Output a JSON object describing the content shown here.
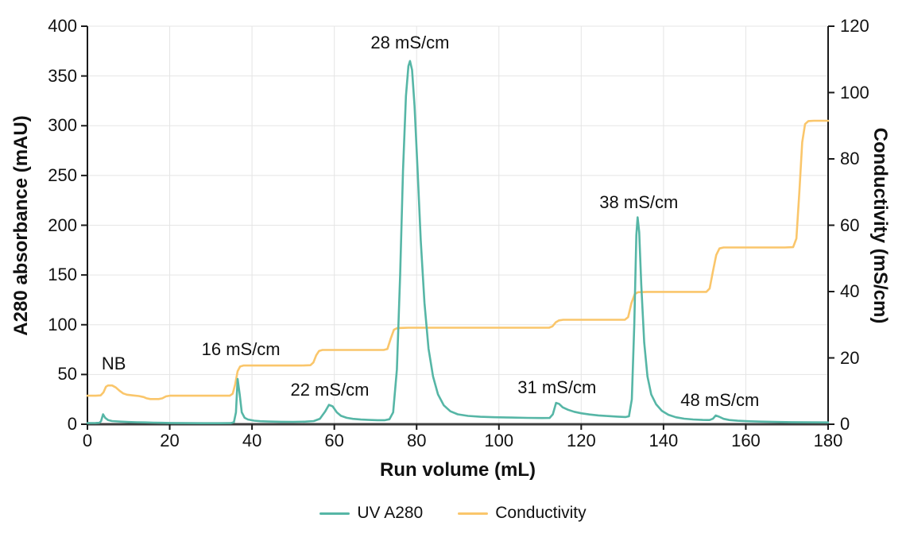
{
  "chart_data": {
    "type": "line",
    "description": "Ion-exchange chromatography run: UV A280 trace with stepped conductivity gradient",
    "grid": true,
    "legend_position": "bottom",
    "x_axis": {
      "label": "Run volume (mL)",
      "min": 0,
      "max": 180,
      "ticks": [
        0,
        20,
        40,
        60,
        80,
        100,
        120,
        140,
        160,
        180
      ]
    },
    "y_left": {
      "label": "A280 absorbance (mAU)",
      "min": 0,
      "max": 400,
      "ticks": [
        0,
        50,
        100,
        150,
        200,
        250,
        300,
        350,
        400
      ]
    },
    "y_right": {
      "label": "Conductivity (mS/cm)",
      "min": 0,
      "max": 120,
      "ticks": [
        0,
        20,
        40,
        60,
        80,
        100,
        120
      ]
    },
    "colors": {
      "uv": "#56B6A6",
      "conductivity": "#FAC66B",
      "grid": "#E5E5E5",
      "axis": "#1A1A1A",
      "x_axis_line": "#3D3D3D",
      "text": "#111111"
    },
    "annotations": [
      {
        "text": "NB",
        "x": 6.4,
        "y": 60.7
      },
      {
        "text": "16 mS/cm",
        "x": 37.3,
        "y": 75.0
      },
      {
        "text": "22 mS/cm",
        "x": 58.9,
        "y": 34.3
      },
      {
        "text": "28 mS/cm",
        "x": 78.4,
        "y": 383.0
      },
      {
        "text": "31 mS/cm",
        "x": 114.1,
        "y": 36.7
      },
      {
        "text": "38 mS/cm",
        "x": 134.0,
        "y": 222.8
      },
      {
        "text": "48 mS/cm",
        "x": 153.7,
        "y": 24.0
      }
    ],
    "series": [
      {
        "name": "UV A280",
        "axis": "left",
        "color": "#56B6A6",
        "points": [
          [
            0,
            1.2
          ],
          [
            2,
            1.25
          ],
          [
            2.9,
            1.4
          ],
          [
            3.3,
            3
          ],
          [
            3.8,
            10
          ],
          [
            4.3,
            6.5
          ],
          [
            5,
            4.2
          ],
          [
            6,
            3.2
          ],
          [
            8,
            2.6
          ],
          [
            10,
            2.2
          ],
          [
            12,
            2
          ],
          [
            14,
            1.8
          ],
          [
            16,
            1.6
          ],
          [
            18,
            1.45
          ],
          [
            20,
            1.3
          ],
          [
            24,
            1.1
          ],
          [
            28,
            1
          ],
          [
            32,
            1
          ],
          [
            34.8,
            1.1
          ],
          [
            35.6,
            2
          ],
          [
            36.1,
            12
          ],
          [
            36.5,
            45.5
          ],
          [
            37,
            30
          ],
          [
            37.5,
            12
          ],
          [
            38.2,
            6.5
          ],
          [
            39,
            4.8
          ],
          [
            40.5,
            3.6
          ],
          [
            42,
            3
          ],
          [
            44,
            2.7
          ],
          [
            47,
            2.5
          ],
          [
            50,
            2.4
          ],
          [
            53,
            2.6
          ],
          [
            55,
            3.2
          ],
          [
            56.5,
            5.5
          ],
          [
            57.8,
            13
          ],
          [
            58.7,
            19.5
          ],
          [
            59.6,
            18
          ],
          [
            60.6,
            12
          ],
          [
            61.6,
            8.5
          ],
          [
            63,
            6.5
          ],
          [
            64.5,
            5.4
          ],
          [
            66.5,
            4.7
          ],
          [
            68.5,
            4.3
          ],
          [
            70.5,
            4.1
          ],
          [
            72.3,
            4.1
          ],
          [
            73.4,
            5
          ],
          [
            74.3,
            12
          ],
          [
            75.2,
            55
          ],
          [
            76,
            150
          ],
          [
            76.7,
            255
          ],
          [
            77.4,
            330
          ],
          [
            78,
            360
          ],
          [
            78.4,
            365
          ],
          [
            78.9,
            356
          ],
          [
            79.5,
            320
          ],
          [
            80.2,
            258
          ],
          [
            81,
            185
          ],
          [
            81.9,
            122
          ],
          [
            82.9,
            76
          ],
          [
            84,
            48
          ],
          [
            85.2,
            30
          ],
          [
            86.6,
            19
          ],
          [
            88.2,
            13
          ],
          [
            90,
            10
          ],
          [
            92.5,
            8.4
          ],
          [
            95.5,
            7.5
          ],
          [
            99,
            7
          ],
          [
            103,
            6.7
          ],
          [
            107,
            6.4
          ],
          [
            110.5,
            6.2
          ],
          [
            112.3,
            6.3
          ],
          [
            113.1,
            10
          ],
          [
            113.9,
            21.5
          ],
          [
            114.6,
            20.5
          ],
          [
            115.5,
            17
          ],
          [
            116.8,
            14.5
          ],
          [
            118.3,
            12.5
          ],
          [
            120,
            11
          ],
          [
            122,
            9.8
          ],
          [
            124.2,
            8.9
          ],
          [
            126.5,
            8.2
          ],
          [
            128.8,
            7.7
          ],
          [
            130.8,
            7.3
          ],
          [
            131.6,
            8
          ],
          [
            132.3,
            25
          ],
          [
            132.9,
            100
          ],
          [
            133.4,
            190
          ],
          [
            133.7,
            208
          ],
          [
            134.1,
            193
          ],
          [
            134.6,
            140
          ],
          [
            135.3,
            82
          ],
          [
            136.1,
            48
          ],
          [
            137,
            30
          ],
          [
            138.2,
            20
          ],
          [
            139.6,
            13.5
          ],
          [
            141.2,
            9.5
          ],
          [
            143,
            7
          ],
          [
            145,
            5.6
          ],
          [
            147.2,
            4.8
          ],
          [
            149.5,
            4.3
          ],
          [
            151.2,
            4.2
          ],
          [
            152,
            5.5
          ],
          [
            152.7,
            8.8
          ],
          [
            153.5,
            7.6
          ],
          [
            154.6,
            5.4
          ],
          [
            156,
            4.2
          ],
          [
            158,
            3.5
          ],
          [
            160.5,
            3
          ],
          [
            163.5,
            2.6
          ],
          [
            167,
            2.3
          ],
          [
            171,
            2.05
          ],
          [
            175,
            1.9
          ],
          [
            180,
            1.8
          ]
        ]
      },
      {
        "name": "Conductivity",
        "axis": "right",
        "color": "#FAC66B",
        "points": [
          [
            0,
            8.6
          ],
          [
            2,
            8.6
          ],
          [
            3.2,
            8.7
          ],
          [
            3.9,
            9.6
          ],
          [
            4.5,
            11.3
          ],
          [
            5,
            11.7
          ],
          [
            6,
            11.7
          ],
          [
            6.9,
            11.1
          ],
          [
            7.8,
            10.1
          ],
          [
            8.7,
            9.3
          ],
          [
            9.6,
            8.9
          ],
          [
            11,
            8.7
          ],
          [
            12.5,
            8.5
          ],
          [
            13.7,
            8.2
          ],
          [
            14.4,
            7.8
          ],
          [
            15.3,
            7.6
          ],
          [
            17.3,
            7.6
          ],
          [
            18.2,
            7.8
          ],
          [
            19.1,
            8.4
          ],
          [
            20,
            8.6
          ],
          [
            24,
            8.6
          ],
          [
            29,
            8.6
          ],
          [
            34.6,
            8.6
          ],
          [
            35.3,
            9.2
          ],
          [
            35.9,
            12
          ],
          [
            36.5,
            16
          ],
          [
            37.1,
            17.4
          ],
          [
            37.9,
            17.7
          ],
          [
            40,
            17.7
          ],
          [
            46,
            17.7
          ],
          [
            52,
            17.7
          ],
          [
            54.2,
            17.8
          ],
          [
            54.9,
            18.6
          ],
          [
            55.6,
            20.8
          ],
          [
            56.3,
            22.1
          ],
          [
            57.1,
            22.4
          ],
          [
            60,
            22.4
          ],
          [
            66,
            22.4
          ],
          [
            72,
            22.4
          ],
          [
            72.9,
            22.7
          ],
          [
            73.7,
            25.8
          ],
          [
            74.5,
            28.5
          ],
          [
            75.3,
            29
          ],
          [
            78,
            29.1
          ],
          [
            84,
            29.1
          ],
          [
            92,
            29.1
          ],
          [
            100,
            29.1
          ],
          [
            108,
            29.1
          ],
          [
            112.2,
            29.1
          ],
          [
            113,
            29.5
          ],
          [
            113.8,
            30.7
          ],
          [
            114.6,
            31.3
          ],
          [
            115.6,
            31.5
          ],
          [
            120,
            31.5
          ],
          [
            126,
            31.5
          ],
          [
            130.6,
            31.5
          ],
          [
            131.4,
            32.3
          ],
          [
            132.2,
            36.5
          ],
          [
            133,
            39.2
          ],
          [
            133.8,
            39.8
          ],
          [
            136,
            39.9
          ],
          [
            141,
            39.9
          ],
          [
            146,
            39.9
          ],
          [
            150.4,
            39.9
          ],
          [
            151.2,
            40.9
          ],
          [
            152,
            46
          ],
          [
            152.8,
            51
          ],
          [
            153.6,
            53
          ],
          [
            154.6,
            53.3
          ],
          [
            158,
            53.3
          ],
          [
            163,
            53.3
          ],
          [
            169.5,
            53.3
          ],
          [
            171.5,
            53.4
          ],
          [
            172.3,
            56
          ],
          [
            173,
            70
          ],
          [
            173.7,
            85
          ],
          [
            174.4,
            90.5
          ],
          [
            175.2,
            91.4
          ],
          [
            176.5,
            91.5
          ],
          [
            180,
            91.5
          ]
        ]
      }
    ]
  }
}
